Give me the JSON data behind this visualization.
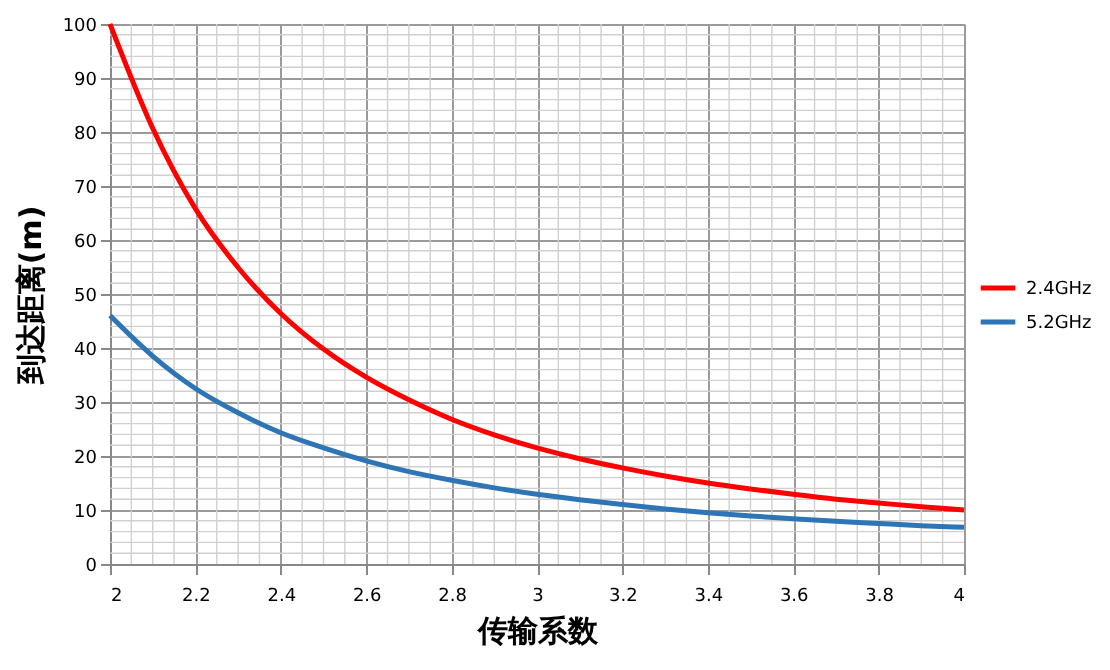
{
  "chart_data": {
    "type": "line",
    "xlabel": "传输系数",
    "ylabel": "到达距离(m)",
    "x": [
      2,
      2.1,
      2.2,
      2.3,
      2.4,
      2.5,
      2.6,
      2.7,
      2.8,
      2.9,
      3,
      3.1,
      3.2,
      3.3,
      3.4,
      3.5,
      3.6,
      3.7,
      3.8,
      3.9,
      4
    ],
    "series": [
      {
        "name": "2.4GHz",
        "color": "#ff0000",
        "values": [
          100,
          80.7,
          65.8,
          54.9,
          46.4,
          39.8,
          34.6,
          30.4,
          26.8,
          23.9,
          21.5,
          19.5,
          17.8,
          16.3,
          15.0,
          13.9,
          12.9,
          12.0,
          11.3,
          10.6,
          10
        ]
      },
      {
        "name": "5.2GHz",
        "color": "#2e75b6",
        "values": [
          46,
          38.5,
          32.5,
          28,
          24.3,
          21.5,
          19.1,
          17.1,
          15.5,
          14.1,
          12.9,
          11.9,
          11,
          10.2,
          9.5,
          8.9,
          8.4,
          7.9,
          7.5,
          7.1,
          6.8
        ]
      }
    ],
    "xlim": [
      2,
      4
    ],
    "xticks": [
      2,
      2.2,
      2.4,
      2.6,
      2.8,
      3,
      3.2,
      3.4,
      3.6,
      3.8,
      4
    ],
    "ylim": [
      0,
      100
    ],
    "yticks": [
      0,
      10,
      20,
      30,
      40,
      50,
      60,
      70,
      80,
      90,
      100
    ],
    "grid": true,
    "legend": "right",
    "marker": "none",
    "line_style": "solid"
  }
}
